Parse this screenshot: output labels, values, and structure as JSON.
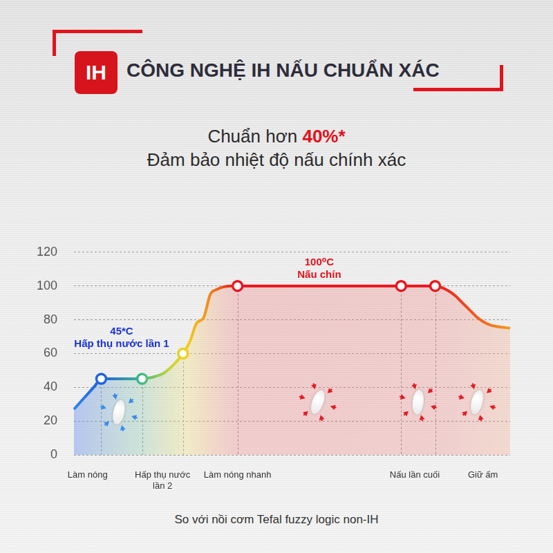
{
  "header": {
    "icon_text": "IH",
    "title": "CÔNG NGHỆ IH NẤU CHUẨN XÁC",
    "claim": "Chuẩn hơn",
    "claim_highlight": "40%*",
    "subtitle": "Đảm bảo nhiệt độ nấu chính xác"
  },
  "chart_data": {
    "type": "line",
    "categories": [
      null,
      null,
      "Làm nóng",
      null,
      null,
      null,
      null,
      null,
      null,
      null,
      null,
      null,
      null,
      "Hấp thụ nước lần 2",
      null,
      null,
      null,
      null,
      null,
      null,
      null,
      null,
      null,
      null,
      "Làm nóng nhanh",
      null,
      null,
      null,
      null,
      null,
      null,
      null,
      null,
      null,
      null,
      null,
      null,
      null,
      null,
      null,
      null,
      null,
      null,
      null,
      null,
      null,
      null,
      null,
      null,
      null,
      "Nấu lần cuối",
      null,
      null,
      null,
      null,
      null,
      null,
      null,
      null,
      null,
      "Giữ ấm",
      null,
      null,
      null,
      null
    ],
    "series": [
      {
        "line_style": "solid",
        "marker": "none",
        "values": [
          27,
          31.5,
          36,
          40.5,
          45,
          45,
          45,
          45,
          45,
          45,
          45,
          45.5,
          46.5,
          48,
          51,
          55,
          60,
          67,
          78,
          81,
          95,
          98,
          99.5,
          100,
          100,
          100,
          100,
          100,
          100,
          100,
          100,
          100,
          100,
          100,
          100,
          100,
          100,
          100,
          100,
          100,
          100,
          100,
          100,
          100,
          100,
          100,
          100,
          100,
          100,
          100,
          100,
          100,
          100,
          100,
          99,
          97,
          94,
          90,
          86,
          82,
          79,
          77,
          76,
          75.5,
          75
        ]
      },
      {
        "type": "scatter",
        "marker": "circle",
        "values": [
          null,
          null,
          null,
          null,
          45,
          null,
          null,
          null,
          null,
          null,
          45,
          null,
          null,
          null,
          null,
          null,
          60,
          null,
          null,
          null,
          null,
          null,
          null,
          null,
          100,
          null,
          null,
          null,
          null,
          null,
          null,
          null,
          null,
          null,
          null,
          null,
          null,
          null,
          null,
          null,
          null,
          null,
          null,
          null,
          null,
          null,
          null,
          null,
          100,
          null,
          null,
          null,
          null,
          100,
          null,
          null,
          null,
          null,
          null,
          null,
          null,
          null,
          null,
          null,
          null
        ]
      }
    ],
    "ylim": [
      0,
      120
    ],
    "yticks": [
      0,
      20,
      40,
      60,
      80,
      100,
      120
    ],
    "grid": true,
    "annotations": [
      {
        "text": [
          "45*C",
          "Hấp thụ nước lần 1"
        ],
        "color": "#1a33d6"
      },
      {
        "text": [
          "100⁰C",
          "Nấu chín"
        ],
        "color": "#e3101b"
      }
    ]
  },
  "footer": "So với nồi cơm Tefal fuzzy logic non-IH"
}
